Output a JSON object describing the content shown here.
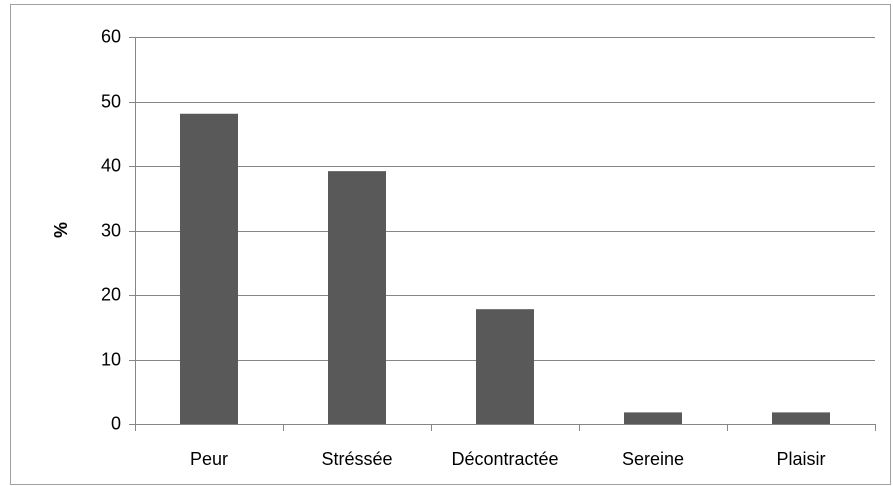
{
  "chart_data": {
    "type": "bar",
    "ylabel": "%",
    "categories": [
      "Peur",
      "Stréssée",
      "Décontractée",
      "Sereine",
      "Plaisir"
    ],
    "values": [
      48.1,
      39.2,
      17.8,
      1.8,
      1.8
    ],
    "color": "#595959",
    "ylim": [
      0,
      60
    ],
    "yticks": [
      0,
      10,
      20,
      30,
      40,
      50,
      60
    ],
    "grid": true
  }
}
